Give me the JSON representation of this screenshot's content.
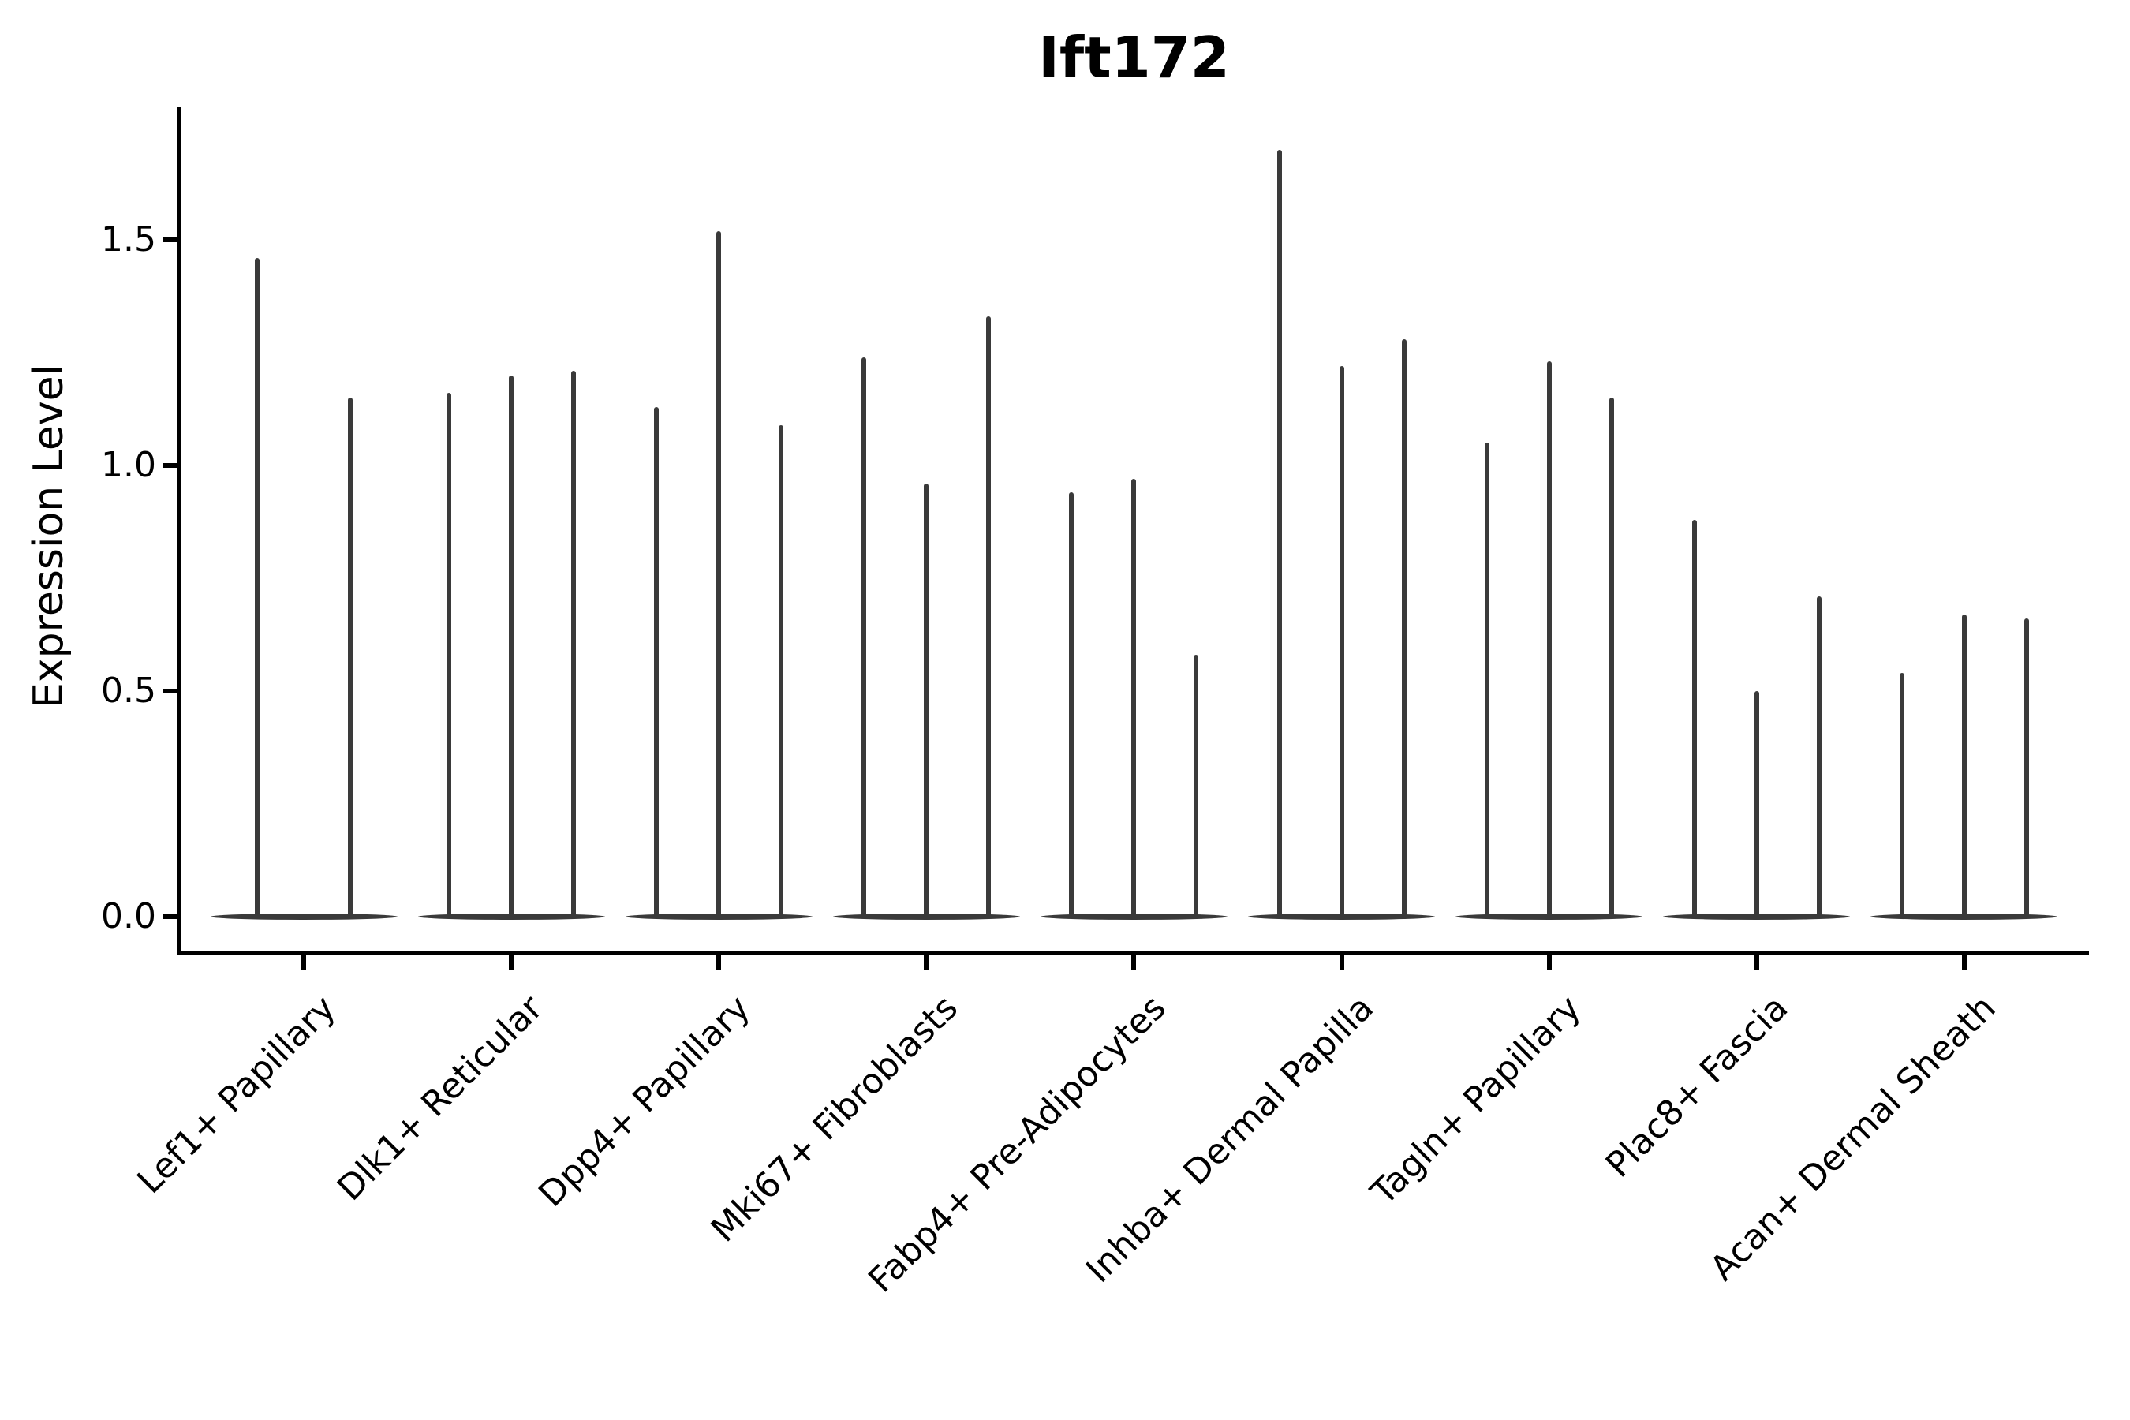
{
  "figure": {
    "title": "Ift172",
    "background_color": "#ffffff",
    "axis_color": "#000000",
    "violin_color": "#3a3a3a"
  },
  "chart_data": {
    "type": "violin",
    "title": "Ift172",
    "xlabel": "",
    "ylabel": "Expression Level",
    "ylim": [
      -0.09,
      1.79
    ],
    "yticks": [
      0.0,
      0.5,
      1.0,
      1.5
    ],
    "ytick_labels": [
      "0.0",
      "0.5",
      "1.0",
      "1.5"
    ],
    "grid": false,
    "legend_position": "none",
    "categories": [
      "Lef1+ Papillary",
      "Dlk1+ Reticular",
      "Dpp4+ Papillary",
      "Mki67+ Fibroblasts",
      "Fabp4+ Pre-Adipocytes",
      "Inhba+ Dermal Papilla",
      "Tagln+ Papillary",
      "Plac8+ Fascia",
      "Acan+ Dermal Sheath"
    ],
    "description": "Each category holds 2-3 very thin violins (near-zero expression mass at 0 with a narrow tail); violin_peaks lists the top expression value of each thin violin, left to right.",
    "groups": [
      {
        "category": "Lef1+ Papillary",
        "violin_peaks": [
          1.46,
          1.15
        ]
      },
      {
        "category": "Dlk1+ Reticular",
        "violin_peaks": [
          1.16,
          1.2,
          1.21
        ]
      },
      {
        "category": "Dpp4+ Papillary",
        "violin_peaks": [
          1.13,
          1.52,
          1.09
        ]
      },
      {
        "category": "Mki67+ Fibroblasts",
        "violin_peaks": [
          1.24,
          0.96,
          1.33
        ]
      },
      {
        "category": "Fabp4+ Pre-Adipocytes",
        "violin_peaks": [
          0.94,
          0.97,
          0.58
        ]
      },
      {
        "category": "Inhba+ Dermal Papilla",
        "violin_peaks": [
          1.7,
          1.22,
          1.28
        ]
      },
      {
        "category": "Tagln+ Papillary",
        "violin_peaks": [
          1.05,
          1.23,
          1.15
        ]
      },
      {
        "category": "Plac8+ Fascia",
        "violin_peaks": [
          0.88,
          0.5,
          0.71
        ]
      },
      {
        "category": "Acan+ Dermal Sheath",
        "violin_peaks": [
          0.54,
          0.67,
          0.66
        ]
      }
    ]
  }
}
